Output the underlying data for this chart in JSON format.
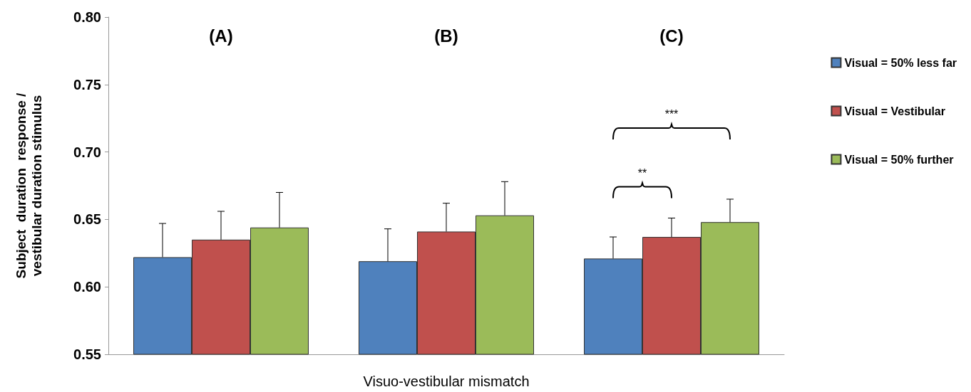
{
  "chart_data": {
    "type": "bar",
    "categories": [
      "(A)",
      "(B)",
      "(C)"
    ],
    "xlabel": "Visuo-vestibular mismatch",
    "ylabel": "Subject  duration  response /\nvestibular duration stimulus",
    "ylim": [
      0.55,
      0.8
    ],
    "yticks": [
      0.55,
      {
        "value": 0.6,
        "label": "0.60"
      },
      0.65,
      {
        "value": 0.7,
        "label": "0.70"
      },
      0.75,
      {
        "value": 0.8,
        "label": "0.80"
      }
    ],
    "series": [
      {
        "name": "Visual = 50% less far",
        "color": "#4f81bd",
        "values": [
          0.622,
          0.619,
          0.621
        ],
        "errors": [
          [
            0.622,
            0.647
          ],
          [
            0.619,
            0.643
          ],
          [
            0.621,
            0.637
          ]
        ]
      },
      {
        "name": "Visual = Vestibular",
        "color": "#c0504d",
        "values": [
          0.635,
          0.641,
          0.637
        ],
        "errors": [
          [
            0.635,
            0.656
          ],
          [
            0.641,
            0.662
          ],
          [
            0.637,
            0.651
          ]
        ]
      },
      {
        "name": "Visual = 50% further",
        "color": "#9bbb59",
        "values": [
          0.644,
          0.653,
          0.648
        ],
        "errors": [
          [
            0.644,
            0.67
          ],
          [
            0.653,
            0.678
          ],
          [
            0.648,
            0.665
          ]
        ]
      }
    ],
    "annotations": [
      "**",
      "***"
    ],
    "legend": "right",
    "grid": false
  }
}
